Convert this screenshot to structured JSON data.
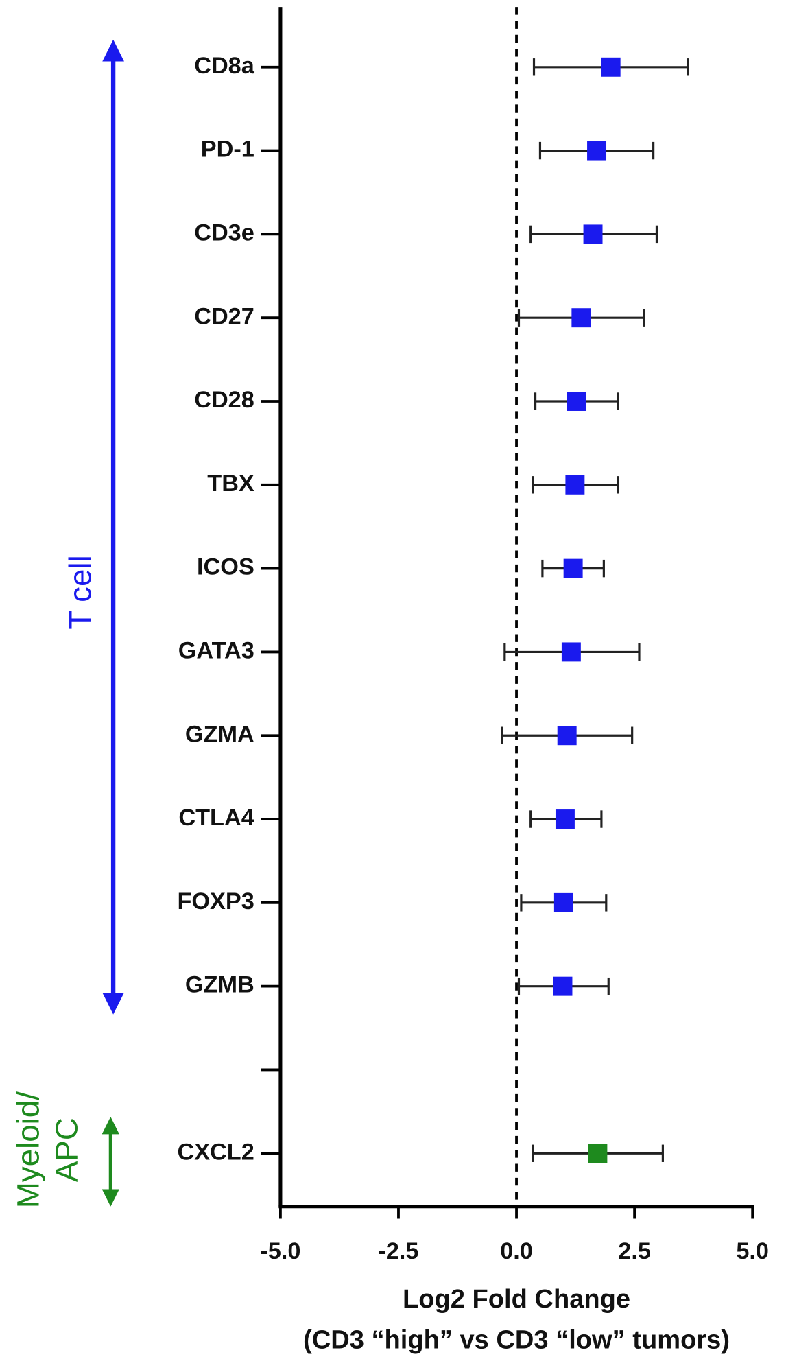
{
  "chart_data": {
    "type": "forest",
    "x_label": [
      "Log2 Fold Change",
      "(CD3 “high” vs CD3 “low” tumors)"
    ],
    "categories": [
      "CD8a",
      "PD-1",
      "CD3e",
      "CD27",
      "CD28",
      "TBX",
      "ICOS",
      "GATA3",
      "GZMA",
      "CTLA4",
      "FOXP3",
      "GZMB",
      null,
      "CXCL2"
    ],
    "series": [
      {
        "name": "T cell",
        "color": "#1a1aee",
        "values": [
          2.0,
          1.7,
          1.62,
          1.37,
          1.27,
          1.24,
          1.2,
          1.16,
          1.07,
          1.03,
          1.0,
          0.98,
          null,
          null
        ],
        "lower": [
          0.37,
          0.5,
          0.3,
          0.05,
          0.4,
          0.35,
          0.55,
          -0.25,
          -0.3,
          0.3,
          0.1,
          0.05,
          null,
          null
        ],
        "upper": [
          3.63,
          2.9,
          2.97,
          2.7,
          2.15,
          2.15,
          1.85,
          2.6,
          2.45,
          1.8,
          1.9,
          1.95,
          null,
          null
        ]
      },
      {
        "name": "Myeloid/ APC",
        "color": "#1e8a1e",
        "values": [
          null,
          null,
          null,
          null,
          null,
          null,
          null,
          null,
          null,
          null,
          null,
          null,
          null,
          1.72
        ],
        "lower": [
          null,
          null,
          null,
          null,
          null,
          null,
          null,
          null,
          null,
          null,
          null,
          null,
          null,
          0.35
        ],
        "upper": [
          null,
          null,
          null,
          null,
          null,
          null,
          null,
          null,
          null,
          null,
          null,
          null,
          null,
          3.1
        ]
      }
    ],
    "xlim": [
      -5,
      5
    ],
    "xticks": [
      {
        "value": -5,
        "label": "-5.0"
      },
      {
        "value": -2.5,
        "label": "-2.5"
      },
      {
        "value": 0,
        "label": "0.0"
      },
      {
        "value": 2.5,
        "label": "2.5"
      },
      {
        "value": 5,
        "label": "5.0"
      }
    ],
    "vline": 0
  }
}
